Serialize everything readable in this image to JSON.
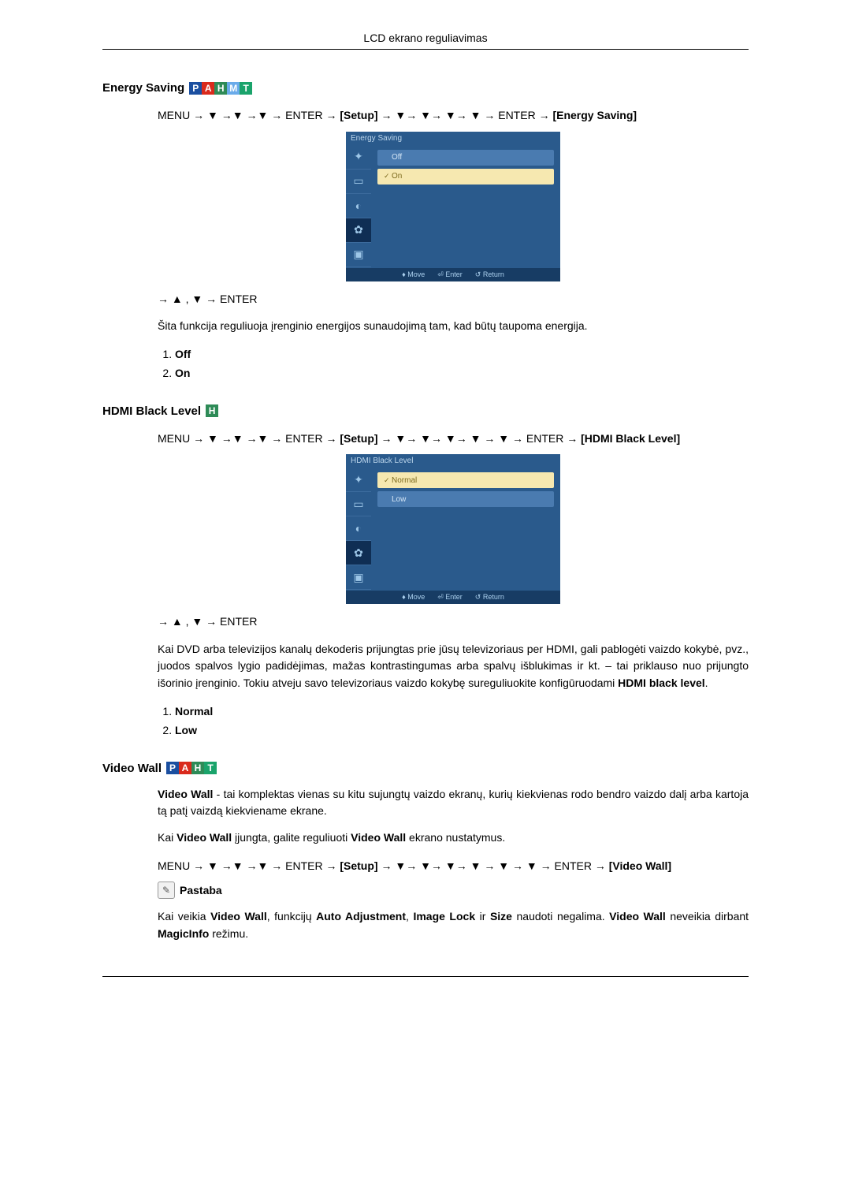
{
  "header": "LCD ekrano reguliavimas",
  "sections": {
    "energy": {
      "title": "Energy Saving",
      "nav_prefix": "MENU → ▼ →▼ →▼ → ENTER → ",
      "nav_setup": "[Setup]",
      "nav_mid": " → ▼→ ▼→ ▼→ ▼ → ENTER → ",
      "nav_target": "[Energy Saving]",
      "nav2": "→ ▲ , ▼ → ENTER",
      "desc": "Šita funkcija reguliuoja įrenginio energijos sunaudojimą tam, kad būtų taupoma energija.",
      "opt1": "Off",
      "opt2": "On",
      "tv": {
        "title": "Energy Saving",
        "row1": "Off",
        "row2": "On"
      }
    },
    "hdmi": {
      "title": "HDMI Black Level",
      "nav_prefix": "MENU → ▼ →▼ →▼ → ENTER → ",
      "nav_setup": "[Setup]",
      "nav_mid": " → ▼→ ▼→ ▼→ ▼ → ▼ → ENTER → ",
      "nav_target": "[HDMI Black Level]",
      "nav2": "→ ▲ , ▼ → ENTER",
      "desc": "Kai DVD arba televizijos kanalų dekoderis prijungtas prie jūsų televizoriaus per HDMI, gali pablogėti vaizdo kokybė, pvz., juodos spalvos lygio padidėjimas, mažas kontrastingumas arba spalvų išblukimas ir kt. – tai priklauso nuo prijungto išorinio įrenginio. Tokiu atveju savo televizoriaus vaizdo kokybę sureguliuokite konfigūruodami ",
      "desc_bold": "HDMI black level",
      "opt1": "Normal",
      "opt2": "Low",
      "tv": {
        "title": "HDMI Black Level",
        "row1": "Normal",
        "row2": "Low"
      }
    },
    "video": {
      "title": "Video Wall",
      "p1_bold1": "Video Wall",
      "p1_rest": " - tai komplektas vienas su kitu sujungtų vaizdo ekranų, kurių kiekvienas rodo bendro vaizdo dalį arba kartoja tą patį vaizdą kiekviename ekrane.",
      "p2_a": "Kai ",
      "p2_b": "Video Wall",
      "p2_c": " įjungta, galite reguliuoti ",
      "p2_d": "Video Wall",
      "p2_e": " ekrano nustatymus.",
      "nav_prefix": "MENU → ▼ →▼ →▼ → ENTER → ",
      "nav_setup": "[Setup]",
      "nav_mid": " → ▼→ ▼→ ▼→ ▼ → ▼ → ▼ → ENTER → ",
      "nav_target": "[Video Wall]",
      "note_label": "Pastaba",
      "note_a": "Kai veikia ",
      "note_b": "Video Wall",
      "note_c": ", funkcijų ",
      "note_d": "Auto Adjustment",
      "note_e": ", ",
      "note_f": "Image Lock",
      "note_g": " ir ",
      "note_h": "Size",
      "note_i": " naudoti negalima. ",
      "note_j": "Video Wall",
      "note_k": " neveikia dirbant ",
      "note_l": "MagicInfo",
      "note_m": " režimu."
    }
  },
  "tv_bottom": {
    "move": "Move",
    "enter": "Enter",
    "return": "Return"
  },
  "tags": {
    "P": "P",
    "A": "A",
    "H": "H",
    "M": "M",
    "T": "T"
  },
  "colors": {
    "P": "#1b4fa0",
    "A": "#d92a1c",
    "H": "#2e8b57",
    "M": "#6aabea",
    "T": "#1aa36b"
  }
}
